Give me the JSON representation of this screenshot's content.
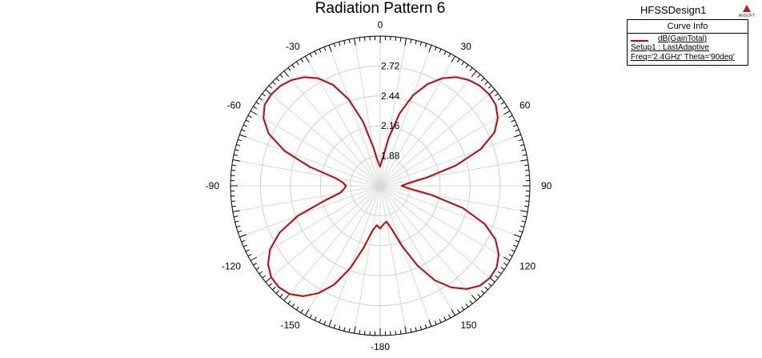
{
  "chart_data": {
    "type": "polar",
    "title": "Radiation Pattern 6",
    "design_name": "HFSSDesign1",
    "logo_text": "ANSOFT",
    "legend": {
      "header": "Curve Info",
      "line1": "dB(GainTotal)",
      "line2": "Setup1 : LastAdaptive",
      "line3": "Freq='2.4GHz' Theta='90deg'"
    },
    "angle_labels": [
      "0",
      "30",
      "60",
      "90",
      "120",
      "150",
      "-180",
      "-150",
      "-120",
      "-90",
      "-60",
      "-30"
    ],
    "radial_ticks": [
      "1.88",
      "2.16",
      "2.44",
      "2.72"
    ],
    "rlim": [
      1.6,
      3.0
    ],
    "series": [
      {
        "color": "#cc0000",
        "angles_deg": [
          0,
          3,
          6,
          10,
          15,
          20,
          25,
          30,
          35,
          40,
          45,
          50,
          55,
          60,
          65,
          70,
          75,
          80,
          85,
          90,
          95,
          100,
          105,
          110,
          115,
          120,
          125,
          130,
          135,
          140,
          145,
          150,
          155,
          160,
          165,
          170,
          175,
          180,
          185,
          190,
          195,
          200,
          205,
          210,
          215,
          220,
          225,
          230,
          235,
          240,
          245,
          250,
          255,
          260,
          265,
          270,
          275,
          280,
          285,
          290,
          295,
          300,
          305,
          310,
          315,
          320,
          325,
          330,
          335,
          340,
          345,
          350,
          355
        ],
        "values": [
          1.78,
          1.82,
          1.88,
          2.05,
          2.3,
          2.5,
          2.65,
          2.76,
          2.84,
          2.89,
          2.92,
          2.93,
          2.92,
          2.87,
          2.78,
          2.6,
          2.33,
          2.04,
          1.86,
          1.8,
          1.86,
          2.08,
          2.4,
          2.64,
          2.79,
          2.88,
          2.93,
          2.94,
          2.92,
          2.86,
          2.76,
          2.62,
          2.42,
          2.2,
          2.02,
          1.94,
          1.96,
          2.0,
          1.97,
          2.03,
          2.2,
          2.42,
          2.62,
          2.76,
          2.86,
          2.92,
          2.94,
          2.93,
          2.88,
          2.79,
          2.64,
          2.42,
          2.14,
          1.98,
          1.94,
          1.92,
          1.95,
          2.03,
          2.28,
          2.55,
          2.75,
          2.86,
          2.92,
          2.93,
          2.92,
          2.89,
          2.84,
          2.76,
          2.64,
          2.46,
          2.22,
          1.96,
          1.82
        ]
      }
    ],
    "grid": true
  }
}
